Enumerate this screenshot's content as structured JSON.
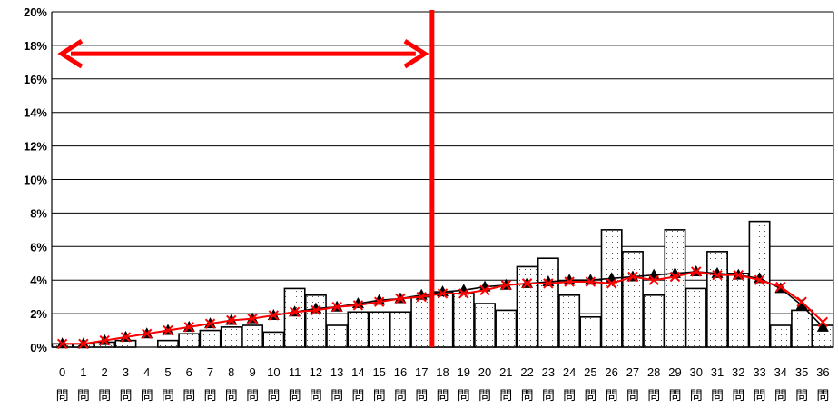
{
  "chart_data": {
    "type": "bar",
    "categories": [
      "0",
      "1",
      "2",
      "3",
      "4",
      "5",
      "6",
      "7",
      "8",
      "9",
      "10",
      "11",
      "12",
      "13",
      "14",
      "15",
      "16",
      "17",
      "18",
      "19",
      "20",
      "21",
      "22",
      "23",
      "24",
      "25",
      "26",
      "27",
      "28",
      "29",
      "30",
      "31",
      "32",
      "33",
      "34",
      "35",
      "36"
    ],
    "category_suffix": "問",
    "series": [
      {
        "kind": "bar",
        "values": [
          0.2,
          0.2,
          0.3,
          0.4,
          0.0,
          0.4,
          0.8,
          1.0,
          1.2,
          1.3,
          0.9,
          3.5,
          3.1,
          1.3,
          2.1,
          2.1,
          2.1,
          3.0,
          3.3,
          3.2,
          2.6,
          2.2,
          4.8,
          5.3,
          3.1,
          1.8,
          7.0,
          5.7,
          3.1,
          7.0,
          3.5,
          5.7,
          4.4,
          7.5,
          1.3,
          2.2,
          1.3
        ]
      },
      {
        "kind": "line",
        "marker": "triangle",
        "values": [
          0.2,
          0.2,
          0.4,
          0.6,
          0.8,
          1.0,
          1.2,
          1.4,
          1.6,
          1.7,
          1.9,
          2.1,
          2.3,
          2.4,
          2.6,
          2.8,
          2.9,
          3.1,
          3.3,
          3.4,
          3.6,
          3.7,
          3.8,
          3.9,
          4.0,
          4.0,
          4.1,
          4.2,
          4.3,
          4.4,
          4.5,
          4.4,
          4.3,
          4.1,
          3.5,
          2.5,
          1.2
        ]
      },
      {
        "kind": "line",
        "marker": "x",
        "values": [
          0.2,
          0.2,
          0.4,
          0.6,
          0.8,
          1.0,
          1.2,
          1.4,
          1.6,
          1.7,
          1.9,
          2.1,
          2.2,
          2.4,
          2.5,
          2.7,
          2.9,
          3.0,
          3.2,
          3.2,
          3.4,
          3.7,
          3.8,
          3.8,
          3.9,
          3.9,
          3.8,
          4.2,
          4.0,
          4.2,
          4.5,
          4.3,
          4.3,
          4.0,
          3.6,
          2.7,
          1.5
        ]
      }
    ],
    "y_ticks": [
      "0%",
      "2%",
      "4%",
      "6%",
      "8%",
      "10%",
      "12%",
      "14%",
      "16%",
      "18%",
      "20%"
    ],
    "ylim": [
      0,
      20
    ],
    "grid": true,
    "annotations": {
      "vertical_line_at": 17.5,
      "arrow_from": -0.2,
      "arrow_to": 17.5,
      "arrow_y": 17.5
    },
    "colors": {
      "bar_fill": "#ffffff",
      "bar_stroke": "#000000",
      "line_triangle": "#000000",
      "line_x": "#ff0000",
      "annotation": "#ff0000"
    }
  }
}
